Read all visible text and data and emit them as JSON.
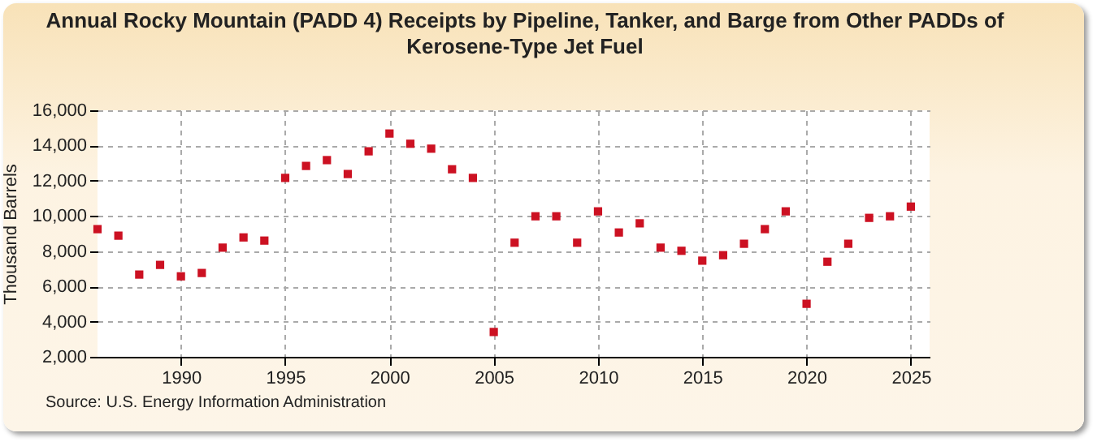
{
  "chart_data": {
    "type": "scatter",
    "title": "Annual Rocky Mountain (PADD 4) Receipts by Pipeline, Tanker, and Barge from Other PADDs of Kerosene-Type Jet Fuel",
    "ylabel": "Thousand Barrels",
    "x": [
      1986,
      1987,
      1988,
      1989,
      1990,
      1991,
      1992,
      1993,
      1994,
      1995,
      1996,
      1997,
      1998,
      1999,
      2000,
      2001,
      2002,
      2003,
      2004,
      2005,
      2006,
      2007,
      2008,
      2009,
      2010,
      2011,
      2012,
      2013,
      2014,
      2015,
      2016,
      2017,
      2018,
      2019,
      2020,
      2021,
      2022,
      2023,
      2024,
      2025
    ],
    "series": [
      {
        "color": "#cc1122",
        "values": [
          9250,
          8880,
          6670,
          7220,
          6570,
          6760,
          8200,
          8780,
          8600,
          12160,
          12840,
          13170,
          12380,
          13670,
          14680,
          14100,
          13820,
          12650,
          12160,
          3410,
          8480,
          9980,
          9980,
          8480,
          10260,
          9060,
          9580,
          8200,
          8020,
          7460,
          7770,
          8420,
          9250,
          10260,
          5010,
          7400,
          8420,
          9890,
          9980,
          10530
        ]
      }
    ],
    "xlim": [
      1986,
      2025.9
    ],
    "xticks": [
      1990,
      1995,
      2000,
      2005,
      2010,
      2015,
      2020,
      2025
    ],
    "ylim": [
      2000,
      16000
    ],
    "yticks": [
      {
        "value": 2000,
        "label": "2,000"
      },
      {
        "value": 4000,
        "label": "4,000"
      },
      {
        "value": 6000,
        "label": "6,000"
      },
      {
        "value": 8000,
        "label": "8,000"
      },
      {
        "value": 10000,
        "label": "10,000"
      },
      {
        "value": 12000,
        "label": "12,000"
      },
      {
        "value": 14000,
        "label": "14,000"
      },
      {
        "value": 16000,
        "label": "16,000"
      }
    ],
    "grid": true,
    "marker": "square",
    "annotations": [
      "Source: U.S. Energy Information Administration"
    ]
  }
}
